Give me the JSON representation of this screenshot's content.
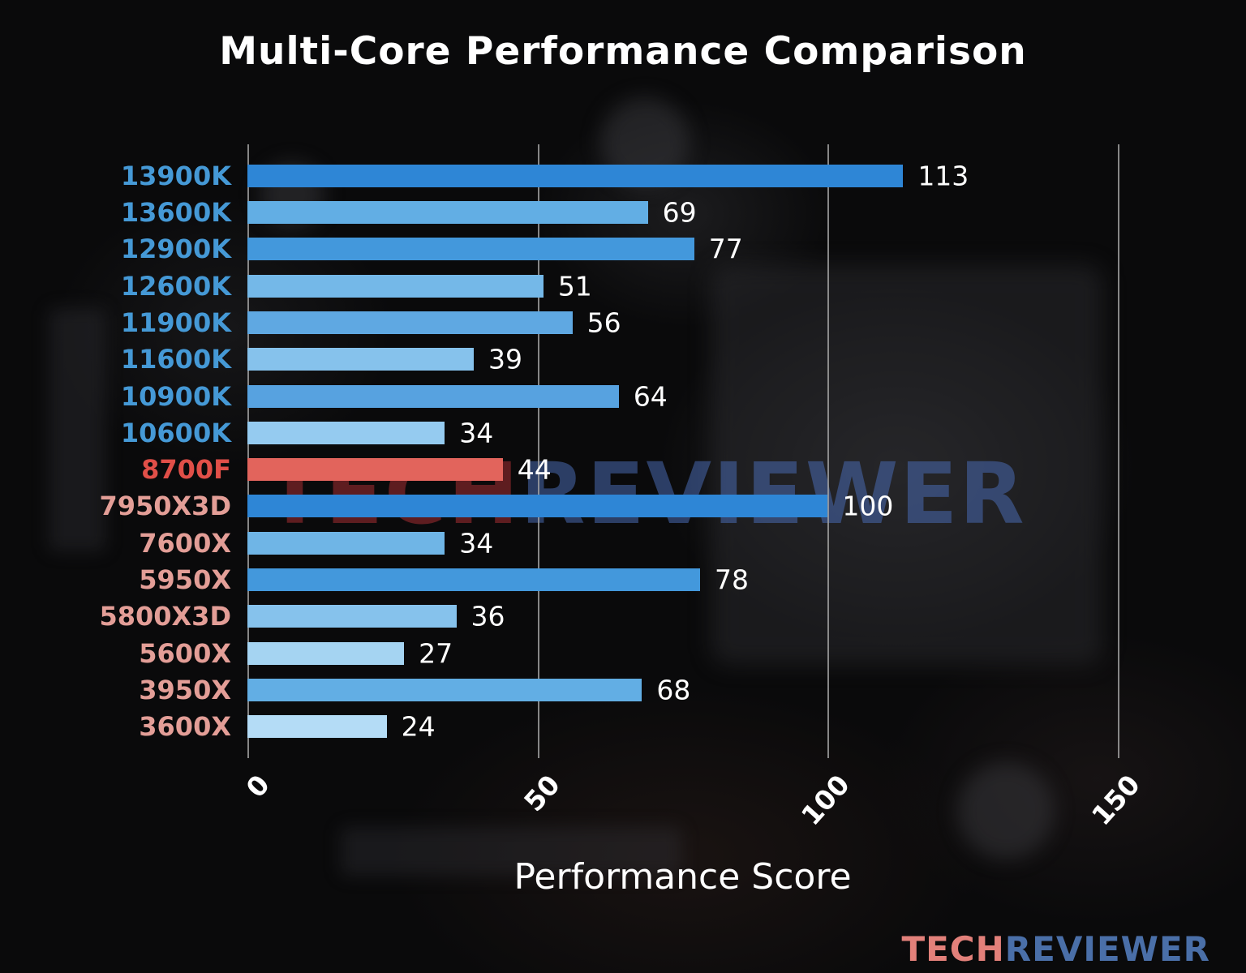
{
  "chart_data": {
    "type": "bar",
    "orientation": "horizontal",
    "title": "Multi-Core Performance Comparison",
    "xlabel": "Performance Score",
    "xlim": [
      0,
      150
    ],
    "xticks": [
      0,
      50,
      100,
      150
    ],
    "grid": true,
    "legend": false,
    "categories": [
      "13900K",
      "13600K",
      "12900K",
      "12600K",
      "11900K",
      "11600K",
      "10900K",
      "10600K",
      "8700F",
      "7950X3D",
      "7600X",
      "5950X",
      "5800X3D",
      "5600X",
      "3950X",
      "3600X"
    ],
    "values": [
      113,
      69,
      77,
      51,
      56,
      39,
      64,
      34,
      44,
      100,
      34,
      78,
      36,
      27,
      68,
      24
    ],
    "bar_colors": [
      "#2e86d6",
      "#62aee4",
      "#4398dc",
      "#74b8e8",
      "#5fa8e2",
      "#86c2ec",
      "#57a2e0",
      "#95cbf0",
      "#e2645c",
      "#2e86d6",
      "#6fb5e6",
      "#4398dc",
      "#86c2ec",
      "#a5d4f2",
      "#62aee4",
      "#b4dcf6"
    ],
    "label_colors": [
      "#4599d6",
      "#4599d6",
      "#4599d6",
      "#4599d6",
      "#4599d6",
      "#4599d6",
      "#4599d6",
      "#4599d6",
      "#e14f48",
      "#e39e97",
      "#e39e97",
      "#e39e97",
      "#e39e97",
      "#e39e97",
      "#e39e97",
      "#e39e97"
    ],
    "highlight_category": "8700F"
  },
  "watermark": {
    "part1": "TECH",
    "part2": "REVIEWER"
  },
  "logo": {
    "part1": "TECH",
    "part2": "REVIEWER"
  },
  "colors": {
    "background": "#0a0a0b",
    "text": "#ffffff",
    "grid": "#a5a5a5",
    "intel_label": "#4599d6",
    "amd_label": "#e39e97",
    "highlight_label": "#e14f48",
    "highlight_bar": "#e2645c"
  }
}
